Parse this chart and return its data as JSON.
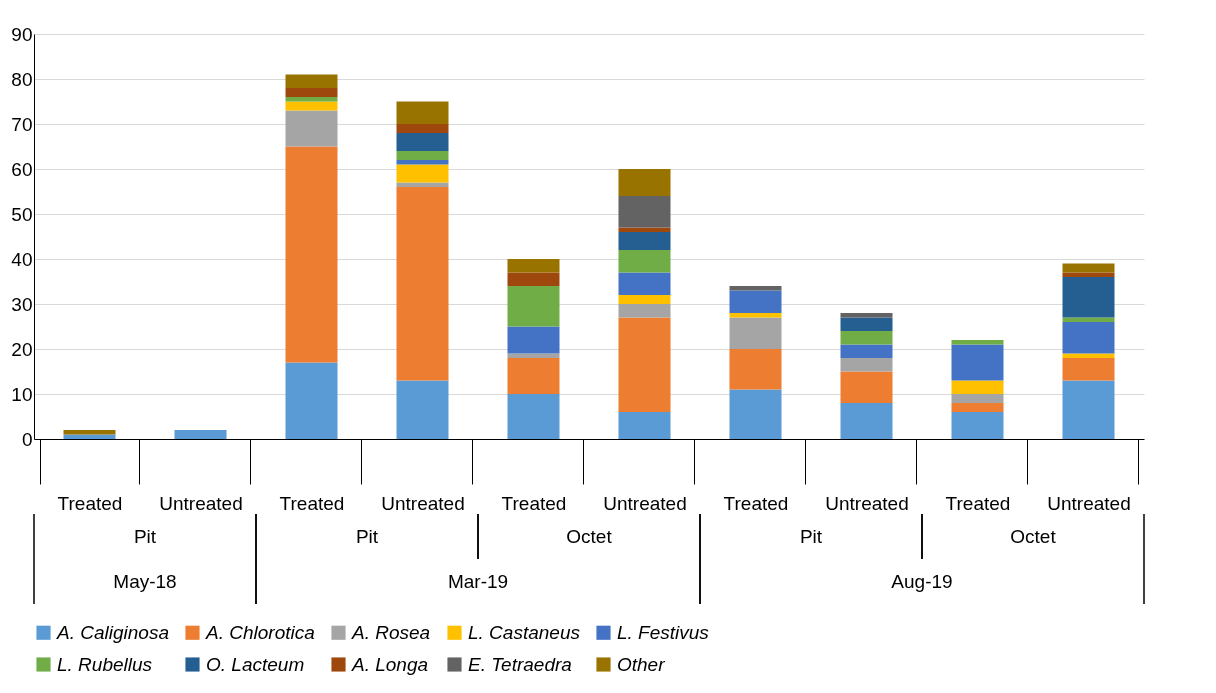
{
  "chart_data": {
    "type": "bar",
    "stacked": true,
    "categories": [
      "Treated",
      "Untreated",
      "Treated",
      "Untreated",
      "Treated",
      "Untreated",
      "Treated",
      "Untreated",
      "Treated",
      "Untreated"
    ],
    "annotations": [
      "Pit",
      "Pit",
      "Octet",
      "Pit",
      "Octet",
      "May-18",
      "Mar-19",
      "Aug-19"
    ],
    "series": [
      {
        "name": "A. Caliginosa",
        "color": "#5b9bd5",
        "values": [
          1,
          2,
          17,
          13,
          10,
          6,
          11,
          8,
          6,
          13
        ]
      },
      {
        "name": "A. Chlorotica",
        "color": "#ed7d31",
        "values": [
          0,
          0,
          48,
          43,
          8,
          21,
          9,
          7,
          2,
          5
        ]
      },
      {
        "name": "A. Rosea",
        "color": "#a5a5a5",
        "values": [
          0,
          0,
          8,
          1,
          1,
          3,
          7,
          3,
          2,
          0
        ]
      },
      {
        "name": "L. Castaneus",
        "color": "#ffc000",
        "values": [
          0,
          0,
          2,
          4,
          0,
          2,
          1,
          0,
          3,
          1
        ]
      },
      {
        "name": "L. Festivus",
        "color": "#4472c4",
        "values": [
          0,
          0,
          0,
          1,
          6,
          5,
          5,
          3,
          8,
          7
        ]
      },
      {
        "name": "L. Rubellus",
        "color": "#70ad47",
        "values": [
          0,
          0,
          1,
          2,
          9,
          5,
          0,
          3,
          1,
          1
        ]
      },
      {
        "name": "O. Lacteum",
        "color": "#255e91",
        "values": [
          0,
          0,
          0,
          4,
          0,
          4,
          0,
          3,
          0,
          9
        ]
      },
      {
        "name": "A. Longa",
        "color": "#9e480e",
        "values": [
          0,
          0,
          2,
          2,
          3,
          1,
          0,
          0,
          0,
          1
        ]
      },
      {
        "name": "E. Tetraedra",
        "color": "#636363",
        "values": [
          0,
          0,
          0,
          0,
          0,
          7,
          1,
          1,
          0,
          0
        ]
      },
      {
        "name": "Other",
        "color": "#997300",
        "values": [
          1,
          0,
          3,
          5,
          3,
          6,
          0,
          0,
          0,
          2
        ]
      }
    ],
    "ylim": [
      0,
      90
    ],
    "yticks": [
      0,
      10,
      20,
      30,
      40,
      50,
      60,
      70,
      80,
      90
    ],
    "grid": "y",
    "legend": "bottom"
  }
}
